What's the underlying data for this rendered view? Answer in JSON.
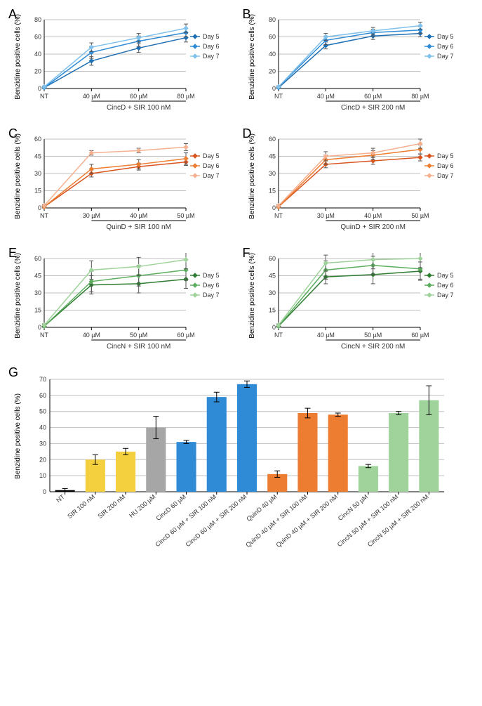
{
  "axis_colors": {
    "axis": "#000000",
    "grid": "#bfbfbf",
    "text": "#333333",
    "err": "#555555"
  },
  "ylabel_text": "Benzidine positive cells (%)",
  "legend_series_names": [
    "Day 5",
    "Day 6",
    "Day 7"
  ],
  "blue_colors": [
    "#1f6fb3",
    "#2f8bd6",
    "#7fc1ec"
  ],
  "orange_colors": [
    "#d9541e",
    "#ed7d31",
    "#f5b090"
  ],
  "green_colors": [
    "#2e7d32",
    "#5bad5e",
    "#9fd39b"
  ],
  "line_panels": {
    "A": {
      "type": "line",
      "colors": "blue",
      "ymax": 80,
      "ytick_step": 20,
      "x_labels": [
        "NT",
        "40 µM",
        "60 µM",
        "80 µM"
      ],
      "x_title": "CincD + SIR 100 nM",
      "series": [
        {
          "name": "Day 5",
          "y": [
            1,
            32,
            47,
            59
          ],
          "err": [
            1,
            5,
            5,
            5
          ]
        },
        {
          "name": "Day 6",
          "y": [
            1,
            42,
            55,
            65
          ],
          "err": [
            1,
            7,
            6,
            5
          ]
        },
        {
          "name": "Day 7",
          "y": [
            2,
            48,
            59,
            70
          ],
          "err": [
            1,
            5,
            5,
            5
          ]
        }
      ]
    },
    "B": {
      "type": "line",
      "colors": "blue",
      "ymax": 80,
      "ytick_step": 20,
      "x_labels": [
        "NT",
        "40 µM",
        "60 µM",
        "80 µM"
      ],
      "x_title": "CincD + SIR 200 nM",
      "series": [
        {
          "name": "Day 5",
          "y": [
            1,
            50,
            61,
            64
          ],
          "err": [
            1,
            4,
            4,
            4
          ]
        },
        {
          "name": "Day 6",
          "y": [
            2,
            56,
            65,
            68
          ],
          "err": [
            1,
            5,
            4,
            4
          ]
        },
        {
          "name": "Day 7",
          "y": [
            2,
            60,
            67,
            73
          ],
          "err": [
            1,
            4,
            4,
            4
          ]
        }
      ]
    },
    "C": {
      "type": "line",
      "colors": "orange",
      "ymax": 60,
      "ytick_step": 15,
      "x_labels": [
        "NT",
        "30 µM",
        "40 µM",
        "50 µM"
      ],
      "x_title": "QuinD + SIR 100 nM",
      "series": [
        {
          "name": "Day 5",
          "y": [
            1,
            30,
            36,
            40
          ],
          "err": [
            1,
            3,
            3,
            3
          ]
        },
        {
          "name": "Day 6",
          "y": [
            1,
            34,
            38,
            43
          ],
          "err": [
            1,
            4,
            4,
            5
          ]
        },
        {
          "name": "Day 7",
          "y": [
            2,
            48,
            50,
            53
          ],
          "err": [
            1,
            2,
            2,
            3
          ]
        }
      ]
    },
    "D": {
      "type": "line",
      "colors": "orange",
      "ymax": 60,
      "ytick_step": 15,
      "x_labels": [
        "NT",
        "30 µM",
        "40 µM",
        "50 µM"
      ],
      "x_title": "QuinD + SIR 200 nM",
      "series": [
        {
          "name": "Day 5",
          "y": [
            1,
            38,
            41,
            44
          ],
          "err": [
            1,
            3,
            3,
            3
          ]
        },
        {
          "name": "Day 6",
          "y": [
            1,
            42,
            46,
            51
          ],
          "err": [
            1,
            4,
            4,
            4
          ]
        },
        {
          "name": "Day 7",
          "y": [
            2,
            45,
            48,
            56
          ],
          "err": [
            1,
            4,
            4,
            4
          ]
        }
      ]
    },
    "E": {
      "type": "line",
      "colors": "green",
      "ymax": 60,
      "ytick_step": 15,
      "x_labels": [
        "NT",
        "40 µM",
        "50 µM",
        "60 µM"
      ],
      "x_title": "CincN + SIR 100 nM",
      "series": [
        {
          "name": "Day 5",
          "y": [
            1,
            37,
            38,
            42
          ],
          "err": [
            1,
            8,
            8,
            8
          ]
        },
        {
          "name": "Day 6",
          "y": [
            1,
            40,
            45,
            50
          ],
          "err": [
            1,
            9,
            9,
            9
          ]
        },
        {
          "name": "Day 7",
          "y": [
            2,
            50,
            53,
            59
          ],
          "err": [
            1,
            8,
            8,
            8
          ]
        }
      ]
    },
    "F": {
      "type": "line",
      "colors": "green",
      "ymax": 60,
      "ytick_step": 15,
      "x_labels": [
        "NT",
        "40 µM",
        "50 µM",
        "60 µM"
      ],
      "x_title": "CincN + SIR 200 nM",
      "series": [
        {
          "name": "Day 5",
          "y": [
            1,
            44,
            46,
            49
          ],
          "err": [
            1,
            6,
            8,
            8
          ]
        },
        {
          "name": "Day 6",
          "y": [
            1,
            50,
            54,
            51
          ],
          "err": [
            1,
            8,
            8,
            9
          ]
        },
        {
          "name": "Day 7",
          "y": [
            2,
            56,
            59,
            60
          ],
          "err": [
            1,
            7,
            8,
            8
          ]
        }
      ]
    }
  },
  "bar_panel": {
    "type": "bar",
    "ymax": 70,
    "ytick_step": 10,
    "bars": [
      {
        "label": "NT",
        "value": 1,
        "err": 1,
        "color": "#000000"
      },
      {
        "label": "SIR 100 nM",
        "value": 20,
        "err": 3,
        "color": "#f4d03f"
      },
      {
        "label": "SIR 200 nM",
        "value": 25,
        "err": 2,
        "color": "#f4d03f"
      },
      {
        "label": "HU 200 µM",
        "value": 40,
        "err": 7,
        "color": "#a6a6a6"
      },
      {
        "label": "CincD 60 µM",
        "value": 31,
        "err": 1,
        "color": "#2f8bd6"
      },
      {
        "label": "CincD 60 µM + SIR 100 nM",
        "value": 59,
        "err": 3,
        "color": "#2f8bd6"
      },
      {
        "label": "CincD 60 µM + SIR 200 nM",
        "value": 67,
        "err": 2,
        "color": "#2f8bd6"
      },
      {
        "label": "QuinD 40 µM",
        "value": 11,
        "err": 2,
        "color": "#ed7d31"
      },
      {
        "label": "QuinD 40 µM + SIR 100 nM",
        "value": 49,
        "err": 3,
        "color": "#ed7d31"
      },
      {
        "label": "QuinD 40 µM + SIR 200 nM",
        "value": 48,
        "err": 1,
        "color": "#ed7d31"
      },
      {
        "label": "CincN 50 µM",
        "value": 16,
        "err": 1,
        "color": "#9fd39b"
      },
      {
        "label": "CincN 50 µM + SIR 100 nM",
        "value": 49,
        "err": 1,
        "color": "#9fd39b"
      },
      {
        "label": "CincN 50 µM + SIR 200 nM",
        "value": 57,
        "err": 9,
        "color": "#9fd39b"
      }
    ]
  }
}
